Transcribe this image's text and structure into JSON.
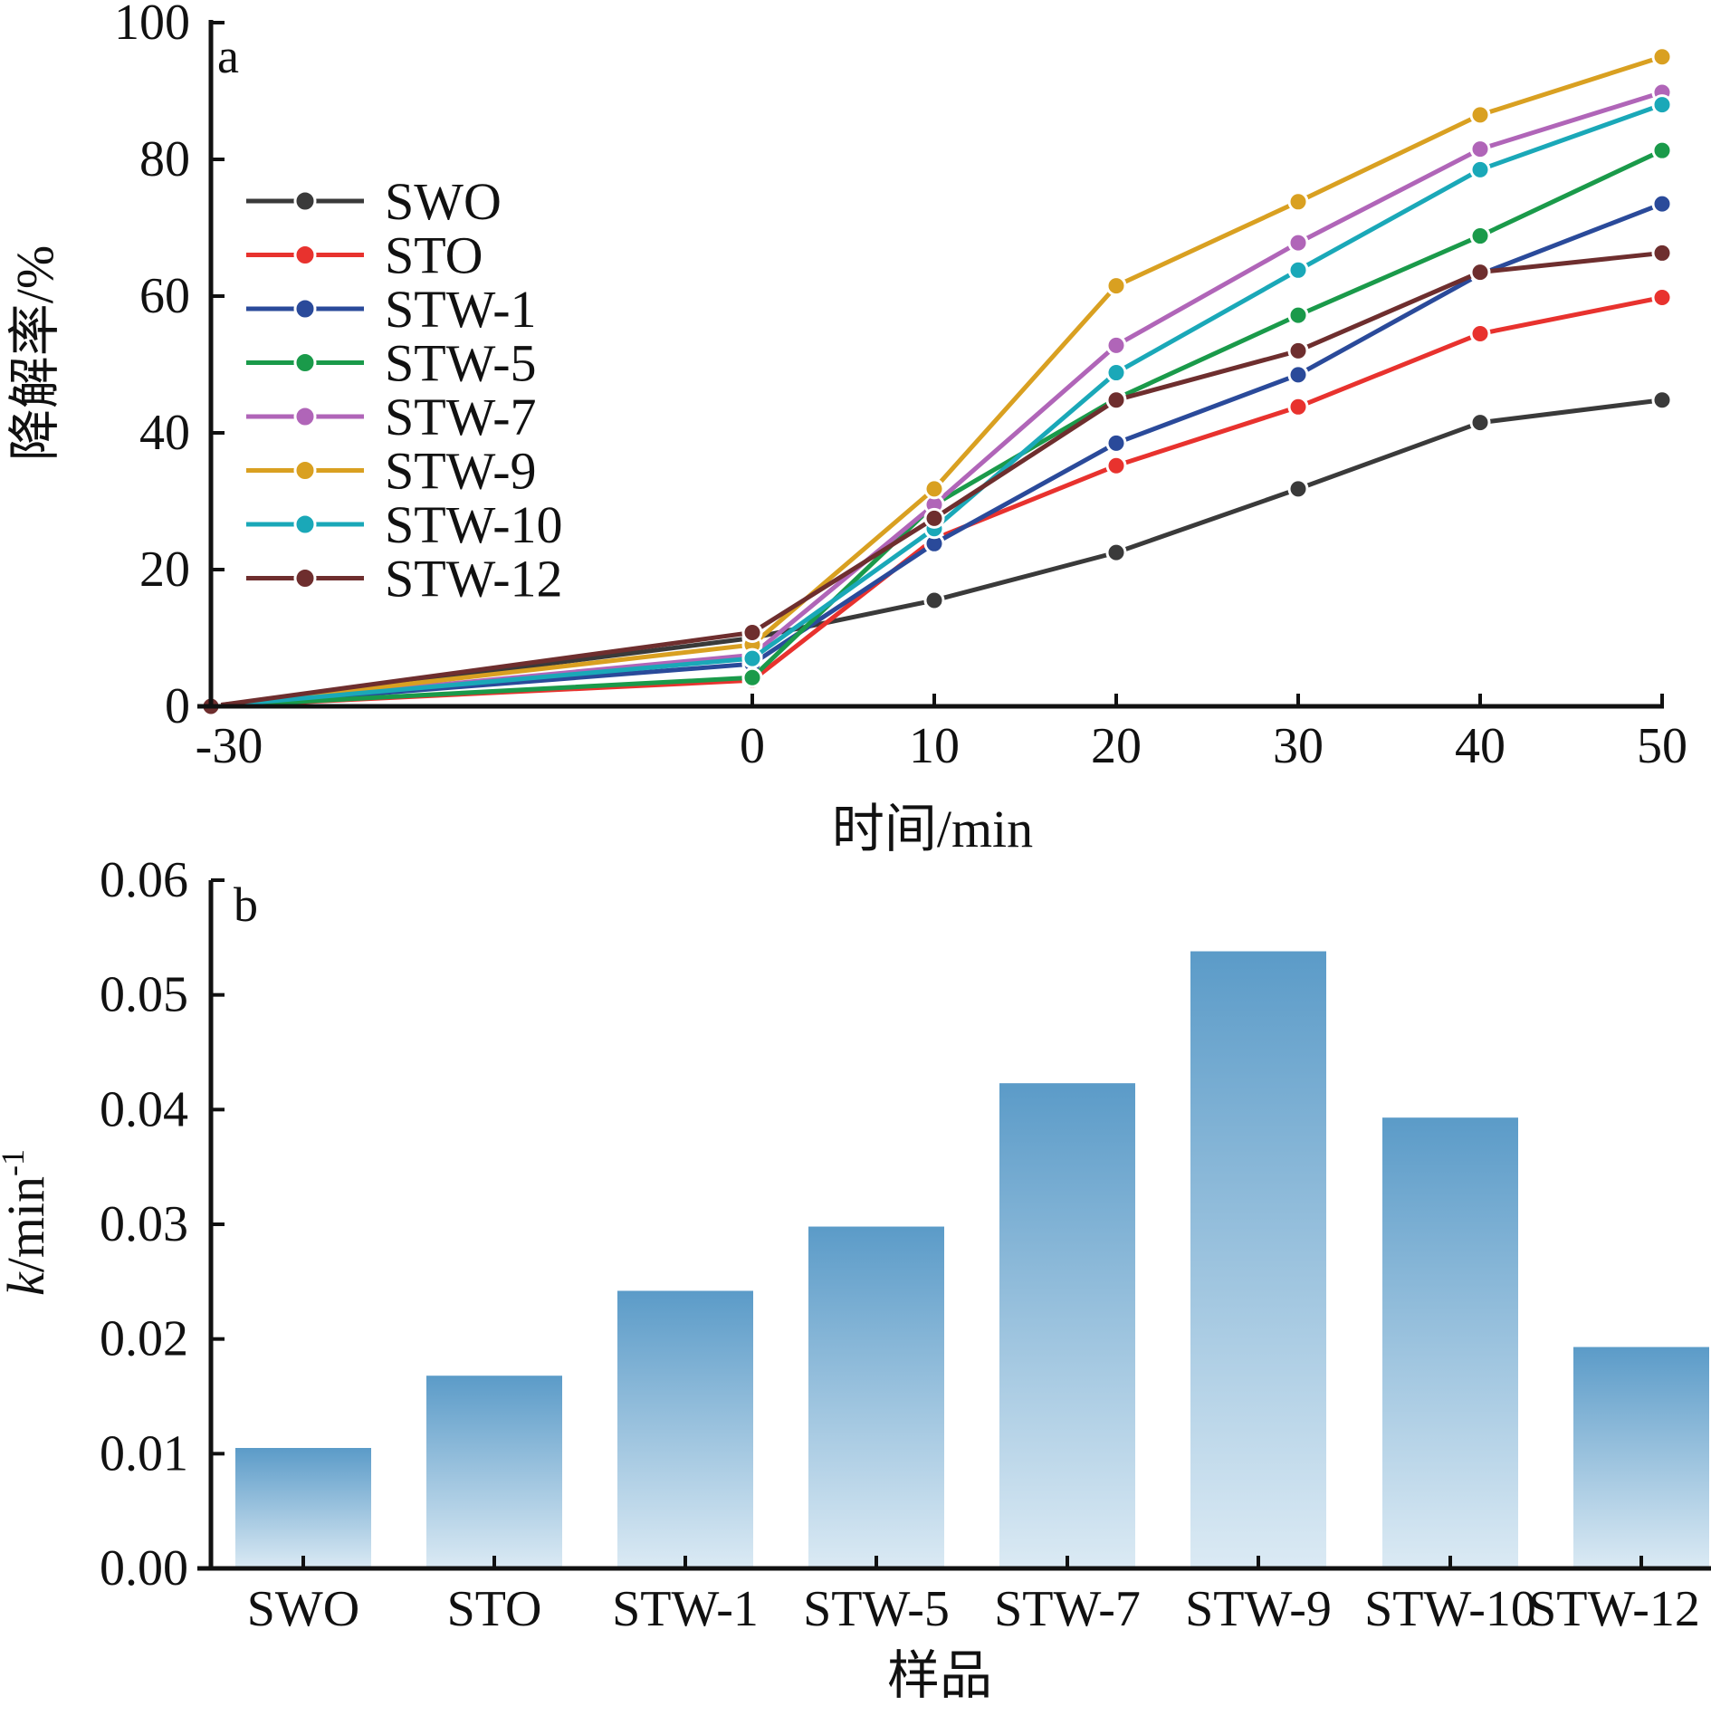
{
  "chart_data": [
    {
      "panel": "a",
      "type": "line",
      "xlabel": "时间/min",
      "ylabel": "降解率/%",
      "x": [
        -30,
        0,
        10,
        20,
        30,
        40,
        50
      ],
      "x_ticks": [
        "-30",
        "0",
        "10",
        "20",
        "30",
        "40",
        "50"
      ],
      "ylim": [
        0,
        100
      ],
      "y_ticks": [
        "0",
        "20",
        "40",
        "60",
        "80",
        "100"
      ],
      "legend_position": "left",
      "grid": false,
      "series": [
        {
          "name": "SWO",
          "color": "#3a3a3a",
          "values": [
            0,
            10,
            15.5,
            22.5,
            31.8,
            41.5,
            44.8
          ]
        },
        {
          "name": "STO",
          "color": "#e8322e",
          "values": [
            0,
            3.8,
            24.5,
            35.2,
            43.8,
            54.5,
            59.8
          ]
        },
        {
          "name": "STW-1",
          "color": "#2a4a9a",
          "values": [
            0,
            6.2,
            23.8,
            38.5,
            48.5,
            63.2,
            73.5
          ]
        },
        {
          "name": "STW-5",
          "color": "#1a9a4a",
          "values": [
            0,
            4.2,
            29.5,
            45.0,
            57.2,
            68.8,
            81.3
          ]
        },
        {
          "name": "STW-7",
          "color": "#b065b8",
          "values": [
            0,
            7.5,
            29.5,
            52.8,
            67.8,
            81.5,
            89.8
          ]
        },
        {
          "name": "STW-9",
          "color": "#d9a021",
          "values": [
            0,
            9.0,
            31.8,
            61.5,
            73.8,
            86.5,
            95.0
          ]
        },
        {
          "name": "STW-10",
          "color": "#1aa8b8",
          "values": [
            0,
            7.0,
            26.0,
            48.8,
            63.8,
            78.5,
            88.0
          ]
        },
        {
          "name": "STW-12",
          "color": "#6e2e2e",
          "values": [
            0,
            10.8,
            27.5,
            44.8,
            52.0,
            63.5,
            66.3
          ]
        }
      ],
      "annotation": "a"
    },
    {
      "panel": "b",
      "type": "bar",
      "xlabel": "样品",
      "ylabel_main": "k",
      "ylabel_rest": "/min",
      "ylabel_sup": "-1",
      "categories": [
        "SWO",
        "STO",
        "STW-1",
        "STW-5",
        "STW-7",
        "STW-9",
        "STW-10",
        "STW-12"
      ],
      "values": [
        0.0105,
        0.0168,
        0.0242,
        0.0298,
        0.0423,
        0.0538,
        0.0393,
        0.0193
      ],
      "ylim": [
        0,
        0.06
      ],
      "y_ticks": [
        "0.00",
        "0.01",
        "0.02",
        "0.03",
        "0.04",
        "0.05",
        "0.06"
      ],
      "bar_color_top": "#5b9bc8",
      "bar_color_bottom": "#dbeaf4",
      "grid": false,
      "annotation": "b"
    }
  ]
}
